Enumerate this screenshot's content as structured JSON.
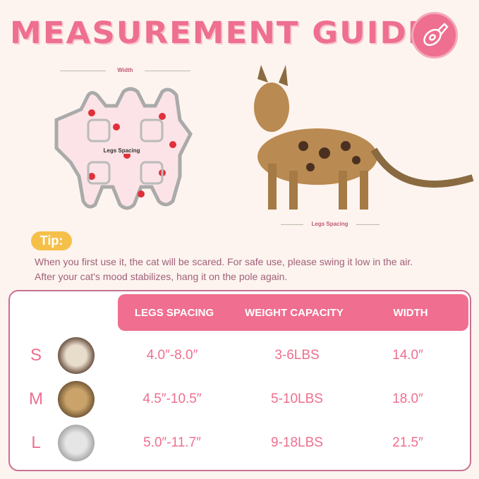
{
  "title": "MEASUREMENT GUIDE",
  "icons": {
    "badge": "measuring-tape-icon"
  },
  "garment": {
    "width_label": "Width",
    "legs_label": "Legs Spacing"
  },
  "cat_photo": {
    "legs_label": "Legs Spacing"
  },
  "tip": {
    "label": "Tip:",
    "text": "When you first use it, the cat will be scared. For safe use, please swing it low in the air. After your cat's mood stabilizes, hang it on the pole again."
  },
  "table": {
    "headers": [
      "LEGS SPACING",
      "WEIGHT CAPACITY",
      "WIDTH"
    ],
    "rows": [
      {
        "size": "S",
        "legs": "4.0″-8.0″",
        "weight": "3-6LBS",
        "width": "14.0″"
      },
      {
        "size": "M",
        "legs": "4.5″-10.5″",
        "weight": "5-10LBS",
        "width": "18.0″"
      },
      {
        "size": "L",
        "legs": "5.0″-11.7″",
        "weight": "9-18LBS",
        "width": "21.5″"
      }
    ]
  },
  "colors": {
    "accent": "#ee6f8f",
    "tip": "#f5c04a",
    "text": "#a0607a"
  }
}
